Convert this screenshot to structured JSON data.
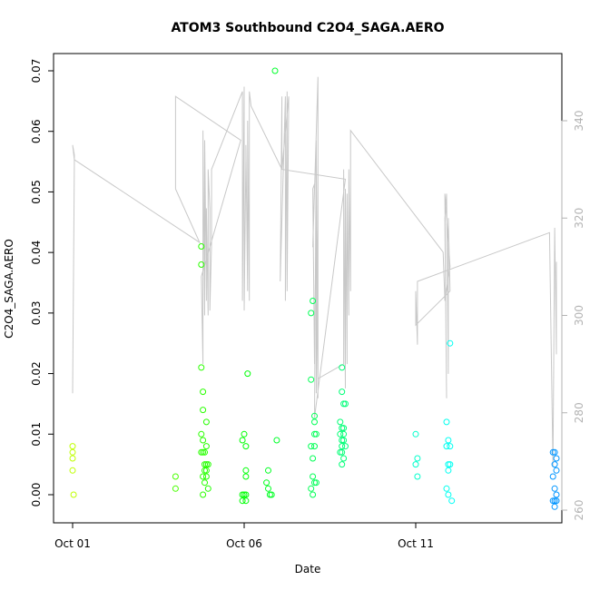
{
  "chart_data": {
    "type": "scatter",
    "title": "ATOM3 Southbound C2O4_SAGA.AERO",
    "xlabel": "Date",
    "ylabel": "C2O4_SAGA.AERO",
    "x_ticks": [
      "Oct 01",
      "Oct 06",
      "Oct 11"
    ],
    "x_range_days": [
      0,
      14
    ],
    "ylim": [
      0,
      0.07
    ],
    "y_ticks": [
      "0.00",
      "0.01",
      "0.02",
      "0.03",
      "0.04",
      "0.05",
      "0.06",
      "0.07"
    ],
    "y2lim": [
      260,
      340
    ],
    "y2_ticks": [
      "260",
      "280",
      "300",
      "320",
      "340"
    ],
    "color_scale": "day-of-period gradient (yellow-green to blue)",
    "series": [
      {
        "values": [
          [
            0.0,
            0.008
          ],
          [
            0.0,
            0.007
          ],
          [
            0.0,
            0.006
          ],
          [
            0.0,
            0.004
          ],
          [
            0.03,
            0.0
          ],
          [
            3.0,
            0.003
          ],
          [
            3.0,
            0.001
          ],
          [
            3.75,
            0.041
          ],
          [
            3.75,
            0.038
          ],
          [
            3.75,
            0.021
          ],
          [
            3.8,
            0.017
          ],
          [
            3.8,
            0.014
          ],
          [
            3.75,
            0.01
          ],
          [
            3.8,
            0.009
          ],
          [
            3.75,
            0.007
          ],
          [
            3.8,
            0.007
          ],
          [
            3.85,
            0.007
          ],
          [
            3.9,
            0.012
          ],
          [
            3.9,
            0.008
          ],
          [
            3.9,
            0.005
          ],
          [
            3.95,
            0.005
          ],
          [
            3.85,
            0.005
          ],
          [
            3.85,
            0.004
          ],
          [
            3.9,
            0.004
          ],
          [
            3.8,
            0.003
          ],
          [
            3.9,
            0.003
          ],
          [
            3.85,
            0.002
          ],
          [
            3.95,
            0.001
          ],
          [
            3.8,
            0.0
          ],
          [
            5.0,
            0.01
          ],
          [
            4.95,
            0.009
          ],
          [
            5.05,
            0.008
          ],
          [
            5.1,
            0.02
          ],
          [
            5.05,
            0.004
          ],
          [
            5.05,
            0.003
          ],
          [
            4.95,
            0.0
          ],
          [
            5.0,
            0.0
          ],
          [
            5.05,
            0.0
          ],
          [
            4.95,
            -0.001
          ],
          [
            5.05,
            -0.001
          ],
          [
            5.7,
            0.004
          ],
          [
            5.65,
            0.002
          ],
          [
            5.7,
            0.001
          ],
          [
            5.75,
            0.0
          ],
          [
            5.8,
            0.0
          ],
          [
            5.9,
            0.07
          ],
          [
            5.95,
            0.009
          ],
          [
            7.0,
            0.032
          ],
          [
            6.95,
            0.03
          ],
          [
            6.95,
            0.019
          ],
          [
            7.05,
            0.013
          ],
          [
            7.05,
            0.012
          ],
          [
            7.1,
            0.01
          ],
          [
            7.05,
            0.01
          ],
          [
            6.95,
            0.008
          ],
          [
            7.05,
            0.008
          ],
          [
            7.0,
            0.006
          ],
          [
            7.0,
            0.003
          ],
          [
            7.05,
            0.002
          ],
          [
            7.1,
            0.002
          ],
          [
            6.95,
            0.001
          ],
          [
            7.0,
            0.0
          ],
          [
            7.85,
            0.021
          ],
          [
            7.85,
            0.017
          ],
          [
            7.9,
            0.015
          ],
          [
            7.95,
            0.015
          ],
          [
            7.8,
            0.012
          ],
          [
            7.85,
            0.011
          ],
          [
            7.9,
            0.011
          ],
          [
            7.8,
            0.01
          ],
          [
            7.9,
            0.01
          ],
          [
            7.85,
            0.009
          ],
          [
            7.9,
            0.009
          ],
          [
            7.85,
            0.008
          ],
          [
            7.95,
            0.008
          ],
          [
            7.8,
            0.007
          ],
          [
            7.85,
            0.007
          ],
          [
            7.9,
            0.006
          ],
          [
            7.85,
            0.005
          ],
          [
            10.0,
            0.01
          ],
          [
            10.05,
            0.006
          ],
          [
            10.0,
            0.005
          ],
          [
            10.05,
            0.003
          ],
          [
            10.9,
            0.012
          ],
          [
            10.95,
            0.009
          ],
          [
            10.9,
            0.008
          ],
          [
            11.0,
            0.008
          ],
          [
            10.95,
            0.005
          ],
          [
            11.0,
            0.005
          ],
          [
            10.95,
            0.004
          ],
          [
            10.9,
            0.001
          ],
          [
            10.95,
            0.0
          ],
          [
            11.05,
            -0.001
          ],
          [
            11.0,
            0.025
          ],
          [
            14.0,
            0.007
          ],
          [
            14.05,
            0.007
          ],
          [
            14.1,
            0.006
          ],
          [
            14.05,
            0.005
          ],
          [
            14.1,
            0.004
          ],
          [
            14.0,
            0.003
          ],
          [
            14.05,
            0.001
          ],
          [
            14.1,
            0.0
          ],
          [
            14.0,
            -0.001
          ],
          [
            14.05,
            -0.001
          ],
          [
            14.1,
            -0.001
          ],
          [
            14.05,
            -0.002
          ]
        ]
      }
    ],
    "trace_y2": [
      [
        0.0,
        284
      ],
      [
        0.05,
        331
      ],
      [
        0.05,
        333
      ],
      [
        0.0,
        335
      ],
      [
        0.05,
        332
      ],
      [
        3.7,
        315
      ],
      [
        3.0,
        326
      ],
      [
        3.0,
        345
      ],
      [
        4.9,
        336
      ],
      [
        3.75,
        308
      ],
      [
        3.8,
        290
      ],
      [
        3.8,
        338
      ],
      [
        3.85,
        300
      ],
      [
        3.85,
        336
      ],
      [
        3.9,
        303
      ],
      [
        3.9,
        322
      ],
      [
        3.95,
        300
      ],
      [
        3.95,
        330
      ],
      [
        4.0,
        322
      ],
      [
        4.0,
        301
      ],
      [
        4.05,
        315
      ],
      [
        4.05,
        330
      ],
      [
        4.95,
        346
      ],
      [
        4.95,
        303
      ],
      [
        5.0,
        347
      ],
      [
        5.0,
        301
      ],
      [
        5.05,
        332
      ],
      [
        5.05,
        335
      ],
      [
        5.1,
        305
      ],
      [
        5.1,
        340
      ],
      [
        5.15,
        303
      ],
      [
        5.15,
        346
      ],
      [
        5.2,
        343
      ],
      [
        6.1,
        330
      ],
      [
        6.1,
        345
      ],
      [
        6.05,
        307
      ],
      [
        6.2,
        345
      ],
      [
        6.2,
        303
      ],
      [
        6.25,
        346
      ],
      [
        6.25,
        305
      ],
      [
        6.3,
        345
      ],
      [
        6.1,
        330
      ],
      [
        7.95,
        328
      ],
      [
        7.05,
        279
      ],
      [
        7.1,
        336
      ],
      [
        7.15,
        283
      ],
      [
        7.15,
        349
      ],
      [
        7.0,
        314
      ],
      [
        7.05,
        327
      ],
      [
        7.0,
        326
      ],
      [
        7.05,
        290
      ],
      [
        7.1,
        325
      ],
      [
        7.1,
        284
      ],
      [
        7.15,
        318
      ],
      [
        7.15,
        287
      ],
      [
        7.9,
        290
      ],
      [
        7.9,
        330
      ],
      [
        7.95,
        285
      ],
      [
        7.95,
        326
      ],
      [
        8.0,
        290
      ],
      [
        8.0,
        325
      ],
      [
        8.05,
        300
      ],
      [
        8.05,
        330
      ],
      [
        8.1,
        305
      ],
      [
        8.1,
        338
      ],
      [
        10.8,
        313
      ],
      [
        10.85,
        303
      ],
      [
        11.0,
        310
      ],
      [
        10.85,
        325
      ],
      [
        10.9,
        283
      ],
      [
        10.85,
        320
      ],
      [
        10.9,
        325
      ],
      [
        10.95,
        288
      ],
      [
        10.95,
        320
      ],
      [
        11.0,
        305
      ],
      [
        10.0,
        298
      ],
      [
        10.0,
        305
      ],
      [
        10.05,
        294
      ],
      [
        10.05,
        307
      ],
      [
        13.9,
        317
      ],
      [
        14.0,
        269
      ],
      [
        14.05,
        318
      ],
      [
        14.1,
        292
      ],
      [
        14.1,
        311
      ]
    ]
  }
}
